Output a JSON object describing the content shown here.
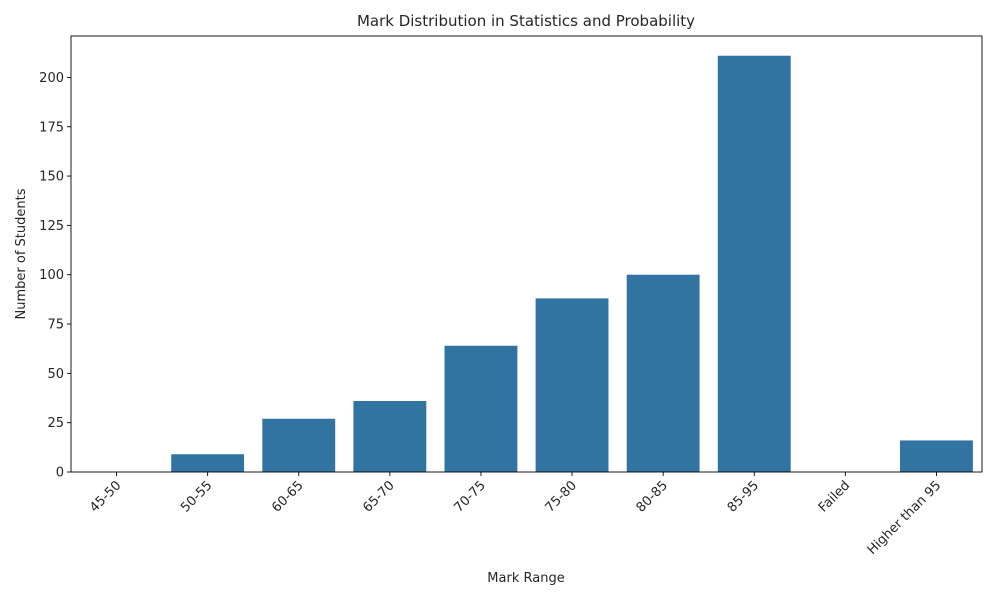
{
  "chart_data": {
    "type": "bar",
    "title": "Mark Distribution in Statistics and Probability",
    "xlabel": "Mark Range",
    "ylabel": "Number of Students",
    "categories": [
      "45-50",
      "50-55",
      "60-65",
      "65-70",
      "70-75",
      "75-80",
      "80-85",
      "85-95",
      "Failed",
      "Higher than 95"
    ],
    "values": [
      0,
      9,
      27,
      36,
      64,
      88,
      100,
      211,
      0,
      16
    ],
    "ylim": [
      0,
      221
    ],
    "yticks": [
      0,
      25,
      50,
      75,
      100,
      125,
      150,
      175,
      200
    ],
    "grid": false,
    "legend": "none",
    "bar_color": "#3274a1"
  }
}
